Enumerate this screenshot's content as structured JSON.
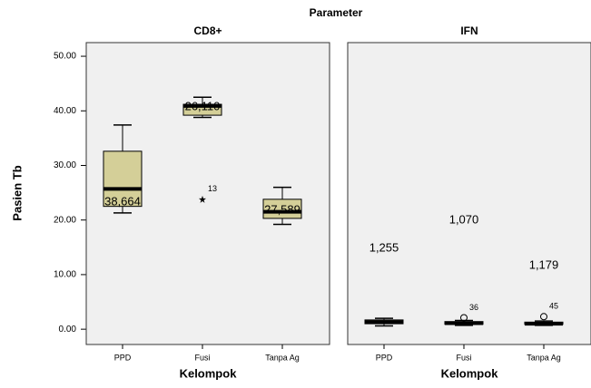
{
  "chart_data": {
    "type": "box",
    "title": "Parameter",
    "ylabel": "Pasien Tb",
    "ylim": [
      -2.8,
      52.5
    ],
    "yticks": [
      {
        "value": 0,
        "label": "0.00"
      },
      {
        "value": 10,
        "label": "10.00"
      },
      {
        "value": 20,
        "label": "20.00"
      },
      {
        "value": 30,
        "label": "30.00"
      },
      {
        "value": 40,
        "label": "40.00"
      },
      {
        "value": 50,
        "label": "50.00"
      }
    ],
    "color": "#d4cf98",
    "categories": [
      "PPD",
      "Fusi",
      "Tanpa Ag"
    ],
    "panels": [
      {
        "title": "CD8+",
        "xlabel": "Kelompok",
        "boxes": [
          {
            "min": 21.3,
            "q1": 22.5,
            "median": 25.7,
            "q3": 32.6,
            "max": 37.4,
            "annotation": "38,664",
            "outliers": []
          },
          {
            "min": 38.8,
            "q1": 39.2,
            "median": 40.9,
            "q3": 41.2,
            "max": 42.5,
            "annotation": "26,110",
            "outliers": [
              {
                "value": 23.8,
                "id": 13,
                "shape": "star"
              }
            ]
          },
          {
            "min": 19.2,
            "q1": 20.3,
            "median": 21.5,
            "q3": 23.8,
            "max": 26.0,
            "annotation": "27,589",
            "outliers": []
          }
        ]
      },
      {
        "title": "IFN",
        "xlabel": "Kelompok",
        "boxes": [
          {
            "min": 0.6,
            "q1": 1.0,
            "median": 1.3,
            "q3": 1.7,
            "max": 2.0,
            "annotation": "1,255",
            "outliers": []
          },
          {
            "min": 0.7,
            "q1": 0.9,
            "median": 1.1,
            "q3": 1.4,
            "max": 1.6,
            "annotation": "1,070",
            "outliers": [
              {
                "value": 2.1,
                "id": 36,
                "shape": "circle"
              }
            ]
          },
          {
            "min": 0.7,
            "q1": 0.9,
            "median": 1.0,
            "q3": 1.3,
            "max": 1.5,
            "annotation": "1,179",
            "outliers": [
              {
                "value": 2.3,
                "id": 45,
                "shape": "circle"
              }
            ]
          }
        ]
      }
    ]
  }
}
